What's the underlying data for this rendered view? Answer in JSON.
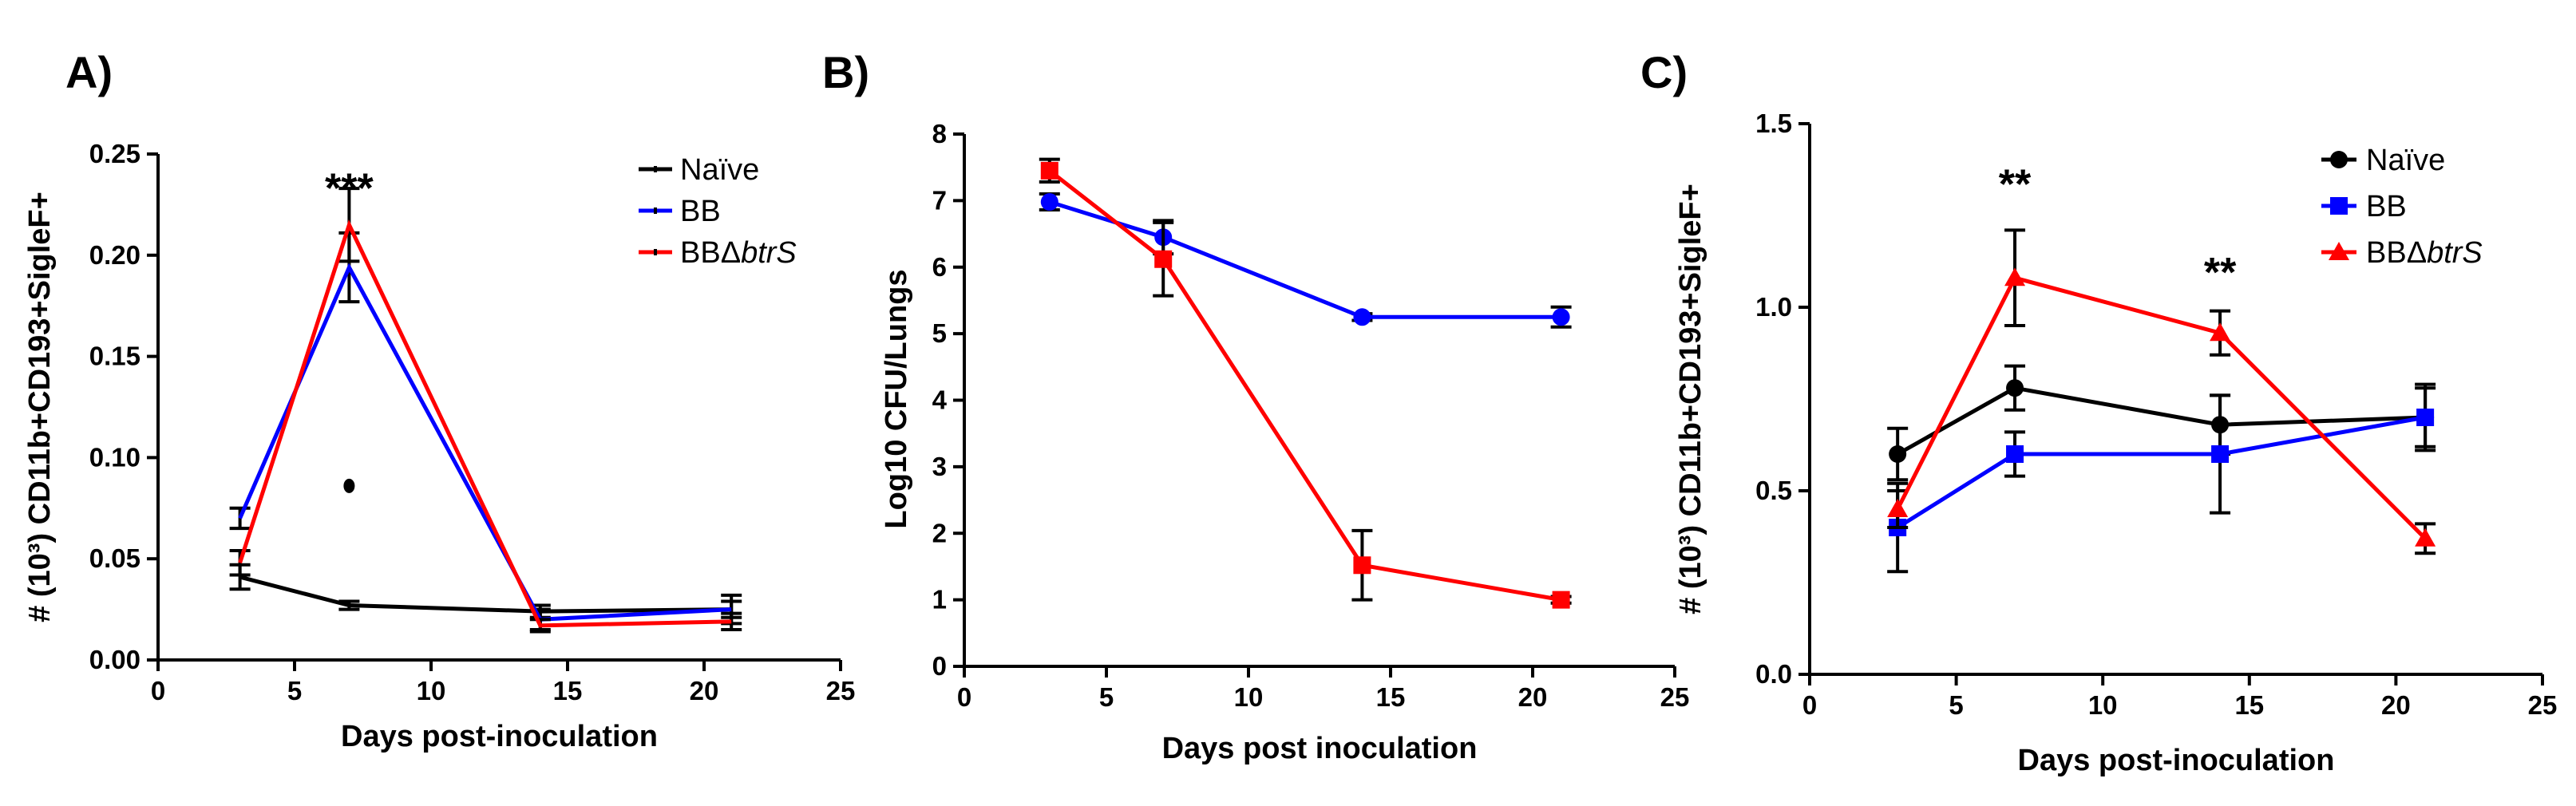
{
  "colors": {
    "naive": "#000000",
    "bb": "#0000ff",
    "bbdelta": "#ff0000",
    "axis": "#000000"
  },
  "chart_data": [
    {
      "panel_label": "A)",
      "type": "line",
      "xlabel": "Days post-inoculation",
      "ylabel": "# (10³) CD11b+CD193+SigleF+",
      "xlim": [
        0,
        25
      ],
      "ylim": [
        0,
        0.25
      ],
      "xticks": [
        "0",
        "5",
        "10",
        "15",
        "20",
        "25"
      ],
      "yticks": [
        "0.00",
        "0.05",
        "0.10",
        "0.15",
        "0.20",
        "0.25"
      ],
      "legend": {
        "position": "top-right",
        "marker": "dash",
        "entries": [
          {
            "prefix": "Naïve",
            "italic": ""
          },
          {
            "prefix": "BB",
            "italic": ""
          },
          {
            "prefix": "BBΔ",
            "italic": "btrS"
          }
        ]
      },
      "series": [
        {
          "name": "Naïve",
          "color": "#000000",
          "marker": "none",
          "x": [
            3,
            7,
            14,
            21
          ],
          "y": [
            0.041,
            0.027,
            0.024,
            0.025
          ],
          "err": [
            0.006,
            0.002,
            0.003,
            0.004
          ]
        },
        {
          "name": "BB",
          "color": "#0000ff",
          "marker": "none",
          "x": [
            3,
            7,
            14,
            21
          ],
          "y": [
            0.07,
            0.194,
            0.02,
            0.025
          ],
          "err": [
            0.005,
            0.017,
            0.005,
            0.007
          ]
        },
        {
          "name": "BBΔbtrS",
          "color": "#ff0000",
          "marker": "none",
          "x": [
            3,
            7,
            14,
            21
          ],
          "y": [
            0.048,
            0.215,
            0.017,
            0.019
          ],
          "err": [
            0.006,
            0.018,
            0.003,
            0.004
          ]
        }
      ],
      "extra_points": [
        {
          "x": 7,
          "y": 0.086
        }
      ],
      "annotations": [
        {
          "text": "***",
          "x": 7,
          "y": 0.234
        }
      ]
    },
    {
      "panel_label": "B)",
      "type": "line",
      "xlabel": "Days post inoculation",
      "ylabel": "Log10 CFU/Lungs",
      "xlim": [
        0,
        25
      ],
      "ylim": [
        0,
        8
      ],
      "xticks": [
        "0",
        "5",
        "10",
        "15",
        "20",
        "25"
      ],
      "yticks": [
        "0",
        "1",
        "2",
        "3",
        "4",
        "5",
        "6",
        "7",
        "8"
      ],
      "series": [
        {
          "name": "BB",
          "color": "#0000ff",
          "marker": "circle",
          "x": [
            3,
            7,
            14,
            21
          ],
          "y": [
            6.98,
            6.45,
            5.25,
            5.25
          ],
          "err": [
            0.12,
            0.25,
            0.05,
            0.15
          ]
        },
        {
          "name": "BBΔbtrS",
          "color": "#ff0000",
          "marker": "square",
          "x": [
            3,
            7,
            14,
            21
          ],
          "y": [
            7.45,
            6.12,
            1.52,
            1.0
          ],
          "err": [
            0.17,
            0.55,
            0.52,
            0.05
          ]
        }
      ],
      "extra_points": [],
      "annotations": []
    },
    {
      "panel_label": "C)",
      "type": "line",
      "xlabel": "Days post-inoculation",
      "ylabel": "# (10³) CD11b+CD193+SigleF+",
      "xlim": [
        0,
        25
      ],
      "ylim": [
        0,
        1.5
      ],
      "xticks": [
        "0",
        "5",
        "10",
        "15",
        "20",
        "25"
      ],
      "yticks": [
        "0.0",
        "0.5",
        "1.0",
        "1.5"
      ],
      "legend": {
        "position": "top-right",
        "marker": "symbol",
        "entries": [
          {
            "prefix": "Naïve",
            "italic": ""
          },
          {
            "prefix": "BB",
            "italic": ""
          },
          {
            "prefix": "BBΔ",
            "italic": "btrS"
          }
        ]
      },
      "series": [
        {
          "name": "Naïve",
          "color": "#000000",
          "marker": "circle",
          "x": [
            3,
            7,
            14,
            21
          ],
          "y": [
            0.6,
            0.78,
            0.68,
            0.7
          ],
          "err": [
            0.07,
            0.06,
            0.08,
            0.09
          ]
        },
        {
          "name": "BB",
          "color": "#0000ff",
          "marker": "square",
          "x": [
            3,
            7,
            14,
            21
          ],
          "y": [
            0.4,
            0.6,
            0.6,
            0.7
          ],
          "err": [
            0.12,
            0.06,
            0.16,
            0.08
          ]
        },
        {
          "name": "BBΔbtrS",
          "color": "#ff0000",
          "marker": "triangle",
          "x": [
            3,
            7,
            14,
            21
          ],
          "y": [
            0.45,
            1.08,
            0.93,
            0.37
          ],
          "err": [
            0.05,
            0.13,
            0.06,
            0.04
          ]
        }
      ],
      "extra_points": [],
      "annotations": [
        {
          "text": "**",
          "x": 7,
          "y": 1.34
        },
        {
          "text": "**",
          "x": 14,
          "y": 1.1
        }
      ]
    }
  ]
}
